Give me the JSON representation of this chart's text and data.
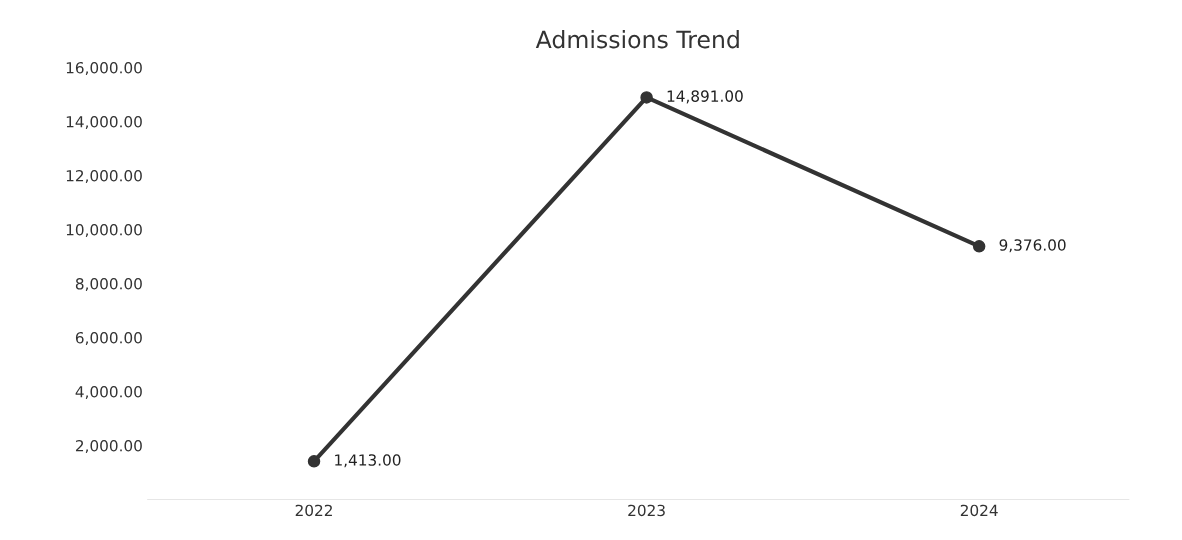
{
  "chart_data": {
    "type": "line",
    "title": "Admissions Trend",
    "categories": [
      "2022",
      "2023",
      "2024"
    ],
    "series": [
      {
        "color": "#333333",
        "values": [
          1413,
          14891,
          9376
        ],
        "value_labels": [
          "1,413.00",
          "14,891.00",
          "9,376.00"
        ]
      }
    ],
    "ylim": [
      0,
      16000
    ],
    "yticks": [
      {
        "value": 2000,
        "label": "2,000.00"
      },
      {
        "value": 4000,
        "label": "4,000.00"
      },
      {
        "value": 6000,
        "label": "6,000.00"
      },
      {
        "value": 8000,
        "label": "8,000.00"
      },
      {
        "value": 10000,
        "label": "10,000.00"
      },
      {
        "value": 12000,
        "label": "12,000.00"
      },
      {
        "value": 14000,
        "label": "14,000.00"
      },
      {
        "value": 16000,
        "label": "16,000.00"
      }
    ],
    "grid": false,
    "legend": false,
    "marker": "circle",
    "line_style": "solid"
  }
}
